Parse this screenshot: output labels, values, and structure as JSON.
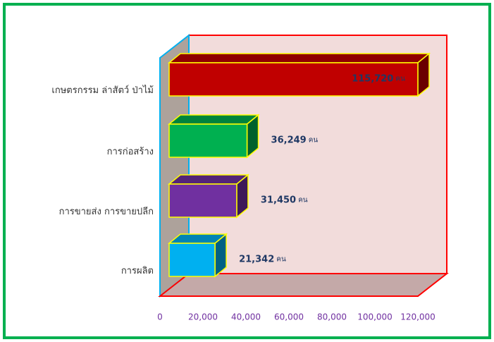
{
  "chart_data": {
    "type": "bar3d",
    "categories": [
      "เกษตรกรรม ล่าสัตว์ ป่าไม้",
      "การก่อสร้าง",
      "การขายส่ง การขายปลีก",
      "การผลิต"
    ],
    "values": [
      115720,
      36249,
      31450,
      21342
    ],
    "value_labels": [
      "115,720",
      "36,249",
      "31,450",
      "21,342"
    ],
    "value_unit": "คน",
    "colors": [
      "#c00000",
      "#00b050",
      "#7030a0",
      "#00b0f0"
    ],
    "xlim": [
      0,
      120000
    ],
    "xticks": [
      0,
      {
        "value": 20000,
        "label": "20,000"
      },
      {
        "value": 40000,
        "label": "40,000"
      },
      {
        "value": 60000,
        "label": "60,000"
      },
      {
        "value": 80000,
        "label": "80,000"
      },
      {
        "value": 100000,
        "label": "100,000"
      },
      {
        "value": 120000,
        "label": "120,000"
      }
    ]
  }
}
